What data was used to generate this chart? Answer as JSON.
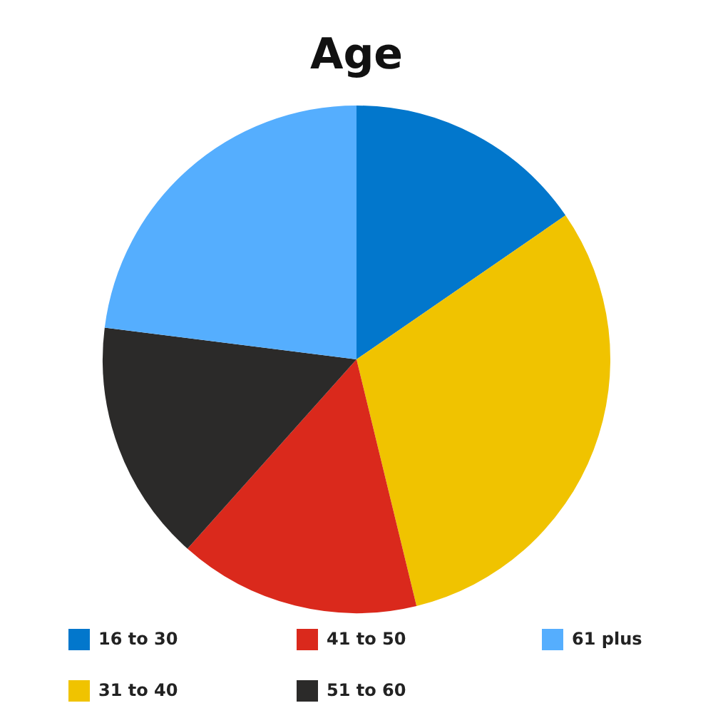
{
  "chart_data": {
    "type": "pie",
    "title": "Age",
    "categories": [
      "16 to 30",
      "31 to 40",
      "41 to 50",
      "51 to 60",
      "61 plus"
    ],
    "values": [
      15.4,
      30.8,
      15.4,
      15.4,
      23
    ],
    "colors": [
      "#0277cc",
      "#f0c300",
      "#da291c",
      "#2b2a29",
      "#55aefe"
    ],
    "legend": "bottom"
  }
}
